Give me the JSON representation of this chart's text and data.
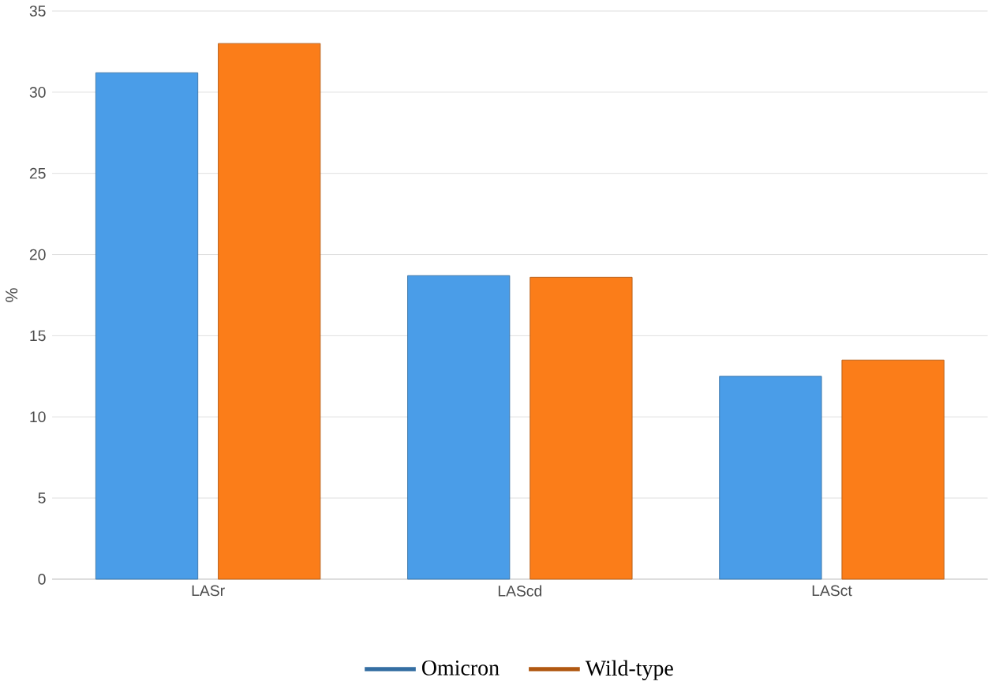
{
  "chart_data": {
    "type": "bar",
    "ylabel": "%",
    "categories": [
      "LASr",
      "LAScd",
      "LASct"
    ],
    "series": [
      {
        "name": "Omicron",
        "color": "#4a9de8",
        "values": [
          31.2,
          18.7,
          12.5
        ]
      },
      {
        "name": "Wild-type",
        "color": "#fb7d19",
        "values": [
          33.0,
          18.6,
          13.5
        ]
      }
    ],
    "ylim": [
      0,
      35
    ],
    "yticks": [
      0,
      5,
      10,
      15,
      20,
      25,
      30,
      35
    ],
    "grid": "y",
    "legend": "bottom"
  }
}
